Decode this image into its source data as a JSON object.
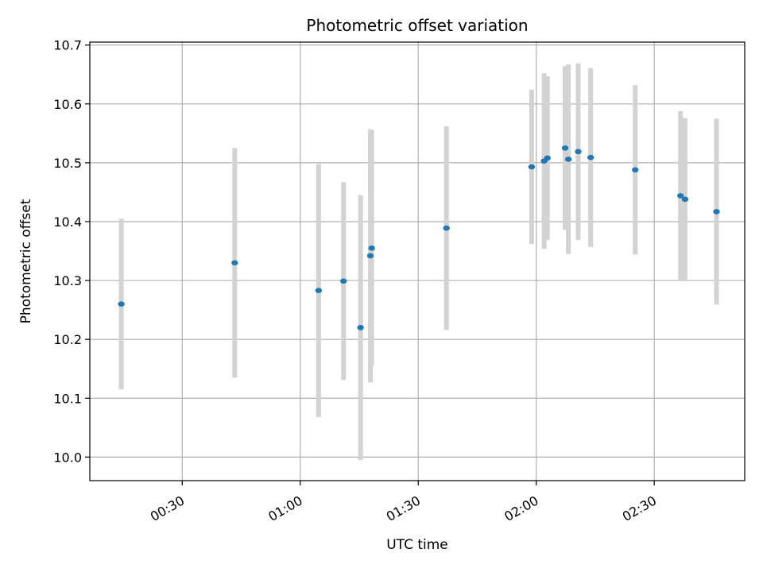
{
  "chart_data": {
    "type": "scatter",
    "title": "Photometric offset variation",
    "xlabel": "UTC time",
    "ylabel": "Photometric offset",
    "x_axis_type": "time",
    "xlim": [
      "00:06:30",
      "02:53:00"
    ],
    "ylim": [
      9.96,
      10.705
    ],
    "x_ticks": [
      "00:30",
      "01:00",
      "01:30",
      "02:00",
      "02:30"
    ],
    "y_ticks": [
      "10.0",
      "10.1",
      "10.2",
      "10.3",
      "10.4",
      "10.5",
      "10.6",
      "10.7"
    ],
    "grid": true,
    "legend": "none",
    "colors": {
      "points": "#1f77b4",
      "error_bars": "#d3d3d3",
      "grid": "#b0b0b0"
    },
    "points": [
      {
        "x": "00:14:30",
        "y": 10.26,
        "err": 0.145
      },
      {
        "x": "00:43:20",
        "y": 10.33,
        "err": 0.195
      },
      {
        "x": "01:04:40",
        "y": 10.283,
        "err": 0.215
      },
      {
        "x": "01:11:00",
        "y": 10.299,
        "err": 0.168
      },
      {
        "x": "01:15:20",
        "y": 10.22,
        "err": 0.225
      },
      {
        "x": "01:17:50",
        "y": 10.342,
        "err": 0.215
      },
      {
        "x": "01:18:10",
        "y": 10.355,
        "err": 0.2
      },
      {
        "x": "01:37:10",
        "y": 10.389,
        "err": 0.173
      },
      {
        "x": "01:58:50",
        "y": 10.493,
        "err": 0.131
      },
      {
        "x": "02:02:00",
        "y": 10.503,
        "err": 0.149
      },
      {
        "x": "02:02:50",
        "y": 10.508,
        "err": 0.139
      },
      {
        "x": "02:07:20",
        "y": 10.525,
        "err": 0.139
      },
      {
        "x": "02:08:10",
        "y": 10.506,
        "err": 0.161
      },
      {
        "x": "02:10:40",
        "y": 10.519,
        "err": 0.15
      },
      {
        "x": "02:13:50",
        "y": 10.509,
        "err": 0.152
      },
      {
        "x": "02:25:10",
        "y": 10.488,
        "err": 0.144
      },
      {
        "x": "02:36:40",
        "y": 10.444,
        "err": 0.144
      },
      {
        "x": "02:37:50",
        "y": 10.438,
        "err": 0.138
      },
      {
        "x": "02:45:50",
        "y": 10.417,
        "err": 0.158
      }
    ]
  }
}
